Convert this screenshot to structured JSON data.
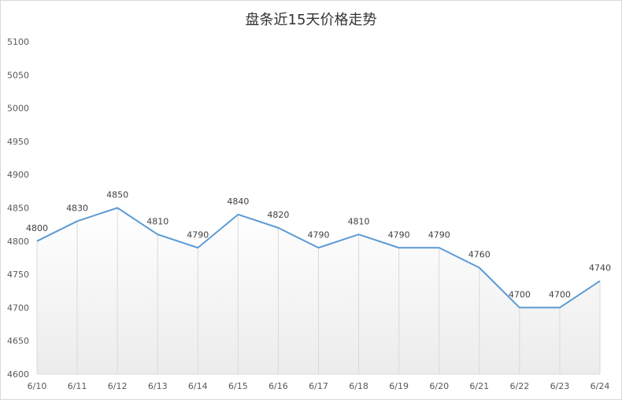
{
  "chart_data": {
    "type": "area",
    "title": "盘条近15天价格走势",
    "categories": [
      "6/10",
      "6/11",
      "6/12",
      "6/13",
      "6/14",
      "6/15",
      "6/16",
      "6/17",
      "6/18",
      "6/19",
      "6/20",
      "6/21",
      "6/22",
      "6/23",
      "6/24"
    ],
    "values": [
      4800,
      4830,
      4850,
      4810,
      4790,
      4840,
      4820,
      4790,
      4810,
      4790,
      4790,
      4760,
      4700,
      4700,
      4740
    ],
    "ylim": [
      4600,
      5100
    ],
    "yticks": [
      4600,
      4650,
      4700,
      4750,
      4800,
      4850,
      4900,
      4950,
      5000,
      5050,
      5100
    ],
    "xlabel": "",
    "ylabel": "",
    "grid": false,
    "legend": "none",
    "colors": {
      "line": "#5b9bd5",
      "area_top": "#ffffff",
      "area_bottom": "#ececec",
      "drop_lines": "#d9d9d9"
    }
  }
}
